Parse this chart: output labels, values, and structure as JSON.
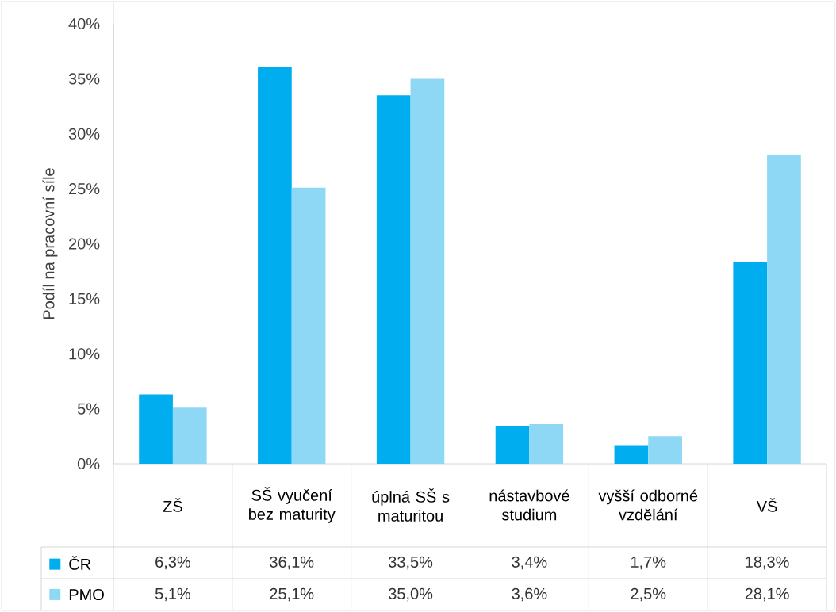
{
  "chart_data": {
    "type": "bar",
    "ylabel": "Podíl na pracovní síle",
    "categories": [
      "ZŠ",
      "SŠ vyučení bez maturity",
      "úplná SŠ s maturitou",
      "nástavbové studium",
      "vyšší odborné vzdělání",
      "VŠ"
    ],
    "series": [
      {
        "name": "ČR",
        "color": "#00aeef",
        "values": [
          6.3,
          36.1,
          33.5,
          3.4,
          1.7,
          18.3
        ],
        "value_labels": [
          "6,3%",
          "36,1%",
          "33,5%",
          "3,4%",
          "1,7%",
          "18,3%"
        ]
      },
      {
        "name": "PMO",
        "color": "#8fd8f5",
        "values": [
          5.1,
          25.1,
          35.0,
          3.6,
          2.5,
          28.1
        ],
        "value_labels": [
          "5,1%",
          "25,1%",
          "35,0%",
          "3,6%",
          "2,5%",
          "28,1%"
        ]
      }
    ],
    "ylim": [
      0,
      40
    ],
    "yticks": [
      {
        "value": 0,
        "label": "0%"
      },
      {
        "value": 5,
        "label": "5%"
      },
      {
        "value": 10,
        "label": "10%"
      },
      {
        "value": 15,
        "label": "15%"
      },
      {
        "value": 20,
        "label": "20%"
      },
      {
        "value": 25,
        "label": "25%"
      },
      {
        "value": 30,
        "label": "30%"
      },
      {
        "value": 35,
        "label": "35%"
      },
      {
        "value": 40,
        "label": "40%"
      }
    ],
    "grid": false,
    "legend": "bottom"
  }
}
